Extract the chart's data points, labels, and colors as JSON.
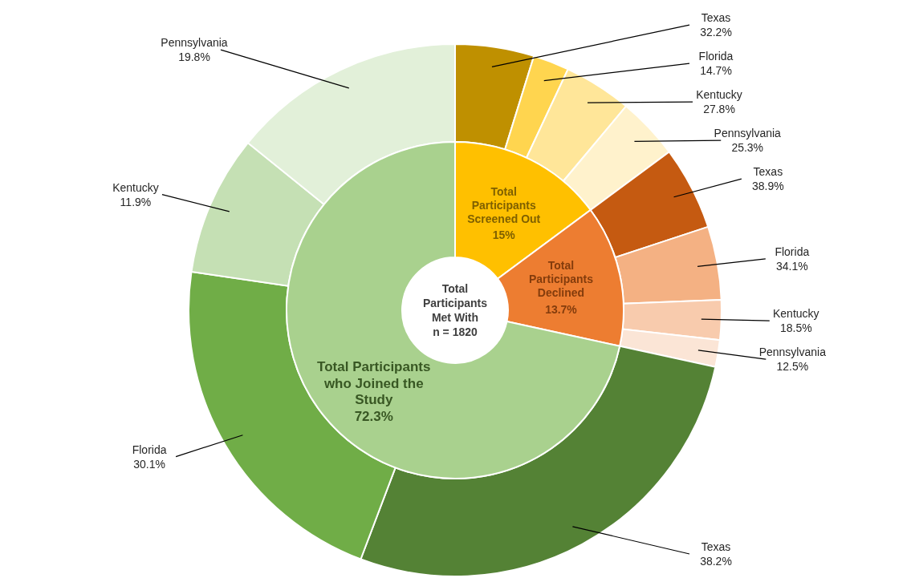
{
  "chart_data": [
    {
      "type": "donut",
      "title": "Total Participants Met With",
      "subtitle": "n = 1820",
      "categories": [
        "Total Participants Screened Out",
        "Total Participants Declined",
        "Total Participants who Joined the Study"
      ],
      "values": [
        15,
        13.7,
        72.3
      ],
      "value_labels": [
        "15%",
        "13.7%",
        "72.3%"
      ],
      "colors": [
        "#ffc000",
        "#ed7d31",
        "#a9d18e"
      ]
    },
    {
      "type": "other",
      "categories": [
        "Texas",
        "Florida",
        "Kentucky",
        "Pennsylvania",
        "Texas",
        "Florida",
        "Kentucky",
        "Pennsylvania",
        "Texas",
        "Florida",
        "Kentucky",
        "Pennsylvania"
      ],
      "values": [
        32.2,
        14.7,
        27.8,
        25.3,
        38.9,
        34.1,
        18.5,
        12.5,
        38.2,
        30.1,
        11.9,
        19.8
      ],
      "value_labels": [
        "32.2%",
        "14.7%",
        "27.8%",
        "25.3%",
        "38.9%",
        "34.1%",
        "18.5%",
        "12.5%",
        "38.2%",
        "30.1%",
        "11.9%",
        "19.8%"
      ],
      "colors": [
        "#bf9000",
        "#ffd54f",
        "#ffe699",
        "#fff2cc",
        "#c55a11",
        "#f4b183",
        "#f8cbad",
        "#fbe5d6",
        "#548235",
        "#70ad47",
        "#c5e0b4",
        "#e2f0d9"
      ]
    }
  ]
}
